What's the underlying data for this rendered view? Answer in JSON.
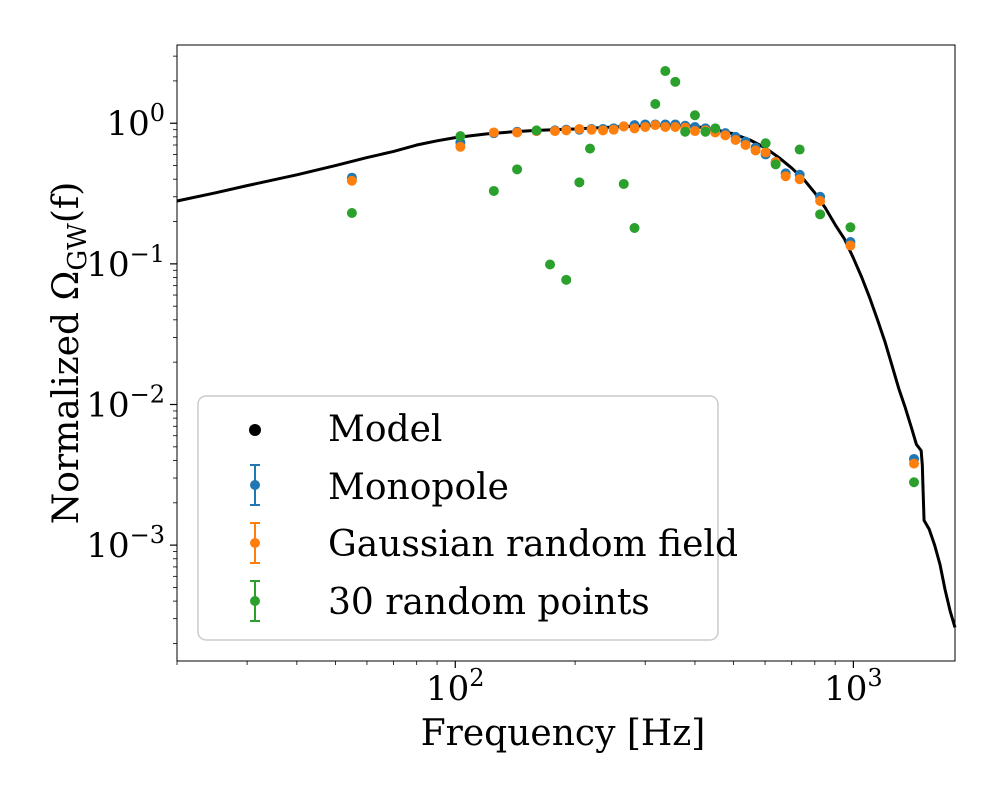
{
  "chart_data": {
    "type": "scatter",
    "title": "",
    "xlabel": "Frequency [Hz]",
    "ylabel_prefix": "Normalized ",
    "ylabel_symbol": "Ω",
    "ylabel_sub": "GW",
    "ylabel_arg": "(f)",
    "xscale": "log",
    "yscale": "log",
    "xlim": [
      20,
      1800
    ],
    "ylim": [
      0.00015,
      3.6
    ],
    "x_ticks": [
      {
        "value": 100,
        "base": "10",
        "exp": "2"
      },
      {
        "value": 1000,
        "base": "10",
        "exp": "3"
      }
    ],
    "y_ticks": [
      {
        "value": 1,
        "base": "10",
        "exp": "0"
      },
      {
        "value": 0.1,
        "base": "10",
        "exp": "−1"
      },
      {
        "value": 0.01,
        "base": "10",
        "exp": "−2"
      },
      {
        "value": 0.001,
        "base": "10",
        "exp": "−3"
      }
    ],
    "legend_position": "lower-left",
    "series": [
      {
        "name": "Model",
        "kind": "line",
        "color": "#000000",
        "points": [
          [
            20,
            0.28
          ],
          [
            25,
            0.32
          ],
          [
            30,
            0.36
          ],
          [
            40,
            0.43
          ],
          [
            50,
            0.5
          ],
          [
            60,
            0.57
          ],
          [
            70,
            0.63
          ],
          [
            80,
            0.7
          ],
          [
            90,
            0.75
          ],
          [
            100,
            0.79
          ],
          [
            120,
            0.84
          ],
          [
            140,
            0.87
          ],
          [
            160,
            0.89
          ],
          [
            180,
            0.9
          ],
          [
            200,
            0.91
          ],
          [
            250,
            0.94
          ],
          [
            300,
            0.96
          ],
          [
            350,
            0.97
          ],
          [
            400,
            0.95
          ],
          [
            450,
            0.9
          ],
          [
            500,
            0.84
          ],
          [
            550,
            0.76
          ],
          [
            600,
            0.67
          ],
          [
            650,
            0.57
          ],
          [
            700,
            0.48
          ],
          [
            750,
            0.4
          ],
          [
            800,
            0.32
          ],
          [
            850,
            0.25
          ],
          [
            900,
            0.19
          ],
          [
            950,
            0.15
          ],
          [
            1000,
            0.11
          ],
          [
            1050,
            0.08
          ],
          [
            1100,
            0.057
          ],
          [
            1150,
            0.04
          ],
          [
            1200,
            0.028
          ],
          [
            1250,
            0.019
          ],
          [
            1300,
            0.013
          ],
          [
            1350,
            0.0095
          ],
          [
            1400,
            0.0068
          ],
          [
            1440,
            0.0052
          ],
          [
            1480,
            0.0047
          ],
          [
            1490,
            0.0037
          ],
          [
            1495,
            0.0027
          ],
          [
            1505,
            0.0015
          ],
          [
            1550,
            0.0013
          ],
          [
            1600,
            0.001
          ],
          [
            1650,
            0.00073
          ],
          [
            1700,
            0.00048
          ],
          [
            1750,
            0.00034
          ],
          [
            1800,
            0.00026
          ]
        ]
      },
      {
        "name": "Monopole",
        "kind": "errorbar",
        "color": "#1f77b4",
        "x": [
          55,
          103,
          125,
          143,
          160,
          178,
          190,
          205,
          220,
          235,
          250,
          265,
          282,
          300,
          318,
          337,
          357,
          378,
          400,
          425,
          450,
          477,
          506,
          536,
          568,
          602,
          638,
          676,
          733,
          825,
          983,
          1420
        ],
        "y": [
          0.41,
          0.73,
          0.85,
          0.87,
          0.88,
          0.89,
          0.9,
          0.9,
          0.91,
          0.91,
          0.92,
          0.95,
          0.97,
          0.98,
          0.98,
          0.98,
          0.98,
          0.96,
          0.94,
          0.92,
          0.89,
          0.85,
          0.8,
          0.74,
          0.67,
          0.6,
          0.53,
          0.44,
          0.43,
          0.3,
          0.143,
          0.0041
        ]
      },
      {
        "name": "Gaussian random field",
        "kind": "errorbar",
        "color": "#ff7f0e",
        "x": [
          55,
          103,
          125,
          143,
          160,
          178,
          190,
          205,
          220,
          235,
          250,
          265,
          282,
          300,
          318,
          337,
          357,
          378,
          400,
          425,
          450,
          477,
          506,
          536,
          568,
          602,
          638,
          676,
          733,
          825,
          983,
          1420
        ],
        "y": [
          0.39,
          0.68,
          0.86,
          0.86,
          0.88,
          0.88,
          0.89,
          0.91,
          0.9,
          0.89,
          0.9,
          0.95,
          0.92,
          0.94,
          0.97,
          0.94,
          0.94,
          0.93,
          0.88,
          0.89,
          0.86,
          0.82,
          0.76,
          0.7,
          0.64,
          0.62,
          0.53,
          0.42,
          0.4,
          0.28,
          0.135,
          0.0038
        ]
      },
      {
        "name": "30 random points",
        "kind": "errorbar",
        "color": "#2ca02c",
        "x": [
          55,
          103,
          125,
          143,
          160,
          173,
          190,
          205,
          218,
          265,
          282,
          318,
          337,
          357,
          378,
          400,
          425,
          450,
          602,
          638,
          733,
          825,
          983,
          1420
        ],
        "y": [
          0.23,
          0.81,
          0.33,
          0.47,
          0.89,
          0.099,
          0.077,
          0.38,
          0.66,
          0.37,
          0.18,
          1.37,
          2.35,
          1.97,
          0.87,
          1.14,
          0.87,
          0.92,
          0.72,
          0.51,
          0.65,
          0.225,
          0.182,
          0.0028
        ]
      }
    ]
  }
}
